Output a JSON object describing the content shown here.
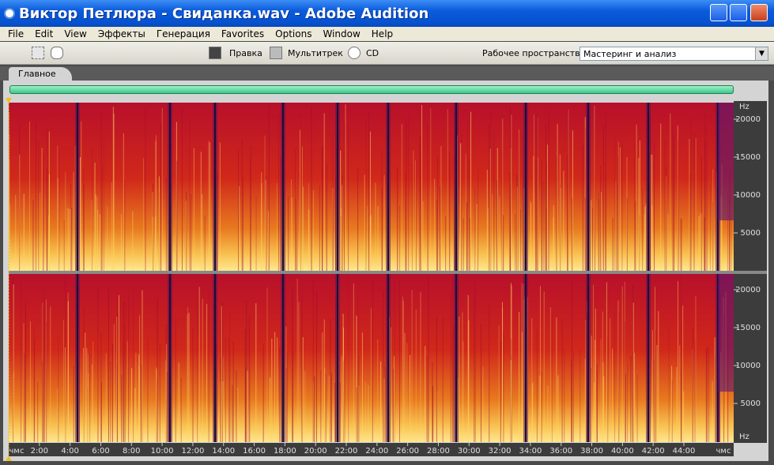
{
  "window": {
    "title": "Виктор Петлюра  - Свиданка.wav - Adobe Audition"
  },
  "menu": [
    "File",
    "Edit",
    "View",
    "Эффекты",
    "Генерация",
    "Favorites",
    "Options",
    "Window",
    "Help"
  ],
  "toolbar": {
    "modes": [
      "Правка",
      "Мультитрек",
      "CD"
    ],
    "workspace_label": "Рабочее пространство:",
    "workspace_value": "Мастеринг и анализ"
  },
  "tab": "Главное",
  "frequency_axis": {
    "unit": "Hz",
    "labels": [
      "20000",
      "15000",
      "10000",
      "5000"
    ]
  },
  "time_axis": {
    "start": "чмс",
    "labels": [
      "2:00",
      "4:00",
      "6:00",
      "8:00",
      "10:00",
      "12:00",
      "14:00",
      "16:00",
      "18:00",
      "20:00",
      "22:00",
      "24:00",
      "26:00",
      "28:00",
      "30:00",
      "32:00",
      "34:00",
      "36:00",
      "38:00",
      "40:00",
      "42:00",
      "44:00"
    ],
    "end": "чмс"
  }
}
